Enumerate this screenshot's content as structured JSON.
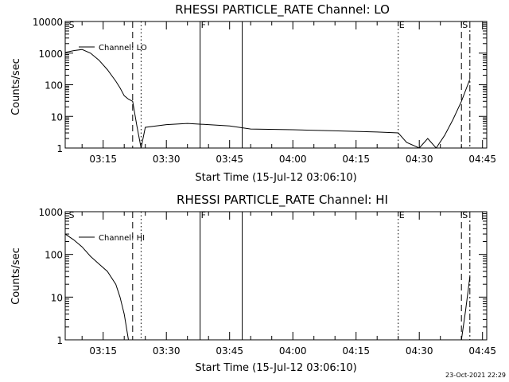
{
  "stamp": "23-Oct-2021 22:29",
  "chart_data": [
    {
      "type": "line",
      "title": "RHESSI PARTICLE_RATE Channel: LO",
      "xlabel": "Start Time (15-Jul-12 03:06:10)",
      "ylabel": "Counts/sec",
      "ylog": true,
      "ylim": [
        1,
        10000
      ],
      "yticks": [
        {
          "v": 1,
          "label": "1"
        },
        {
          "v": 10,
          "label": "10"
        },
        {
          "v": 100,
          "label": "100"
        },
        {
          "v": 1000,
          "label": "1000"
        },
        {
          "v": 10000,
          "label": "10000"
        }
      ],
      "xlim": [
        "03:06",
        "04:46"
      ],
      "xticks": [
        "03:15",
        "03:30",
        "03:45",
        "04:00",
        "04:15",
        "04:30",
        "04:45"
      ],
      "legend": {
        "label": "Channel: LO",
        "position": "top-left"
      },
      "markers": [
        {
          "time": "03:06:40",
          "style": "none",
          "label": "S"
        },
        {
          "time": "03:22",
          "style": "dashed",
          "label": ""
        },
        {
          "time": "03:24",
          "style": "dotted",
          "label": ""
        },
        {
          "time": "03:38",
          "style": "solid",
          "label": "F"
        },
        {
          "time": "03:48",
          "style": "solid",
          "label": ""
        },
        {
          "time": "04:25",
          "style": "dotted",
          "label": "E"
        },
        {
          "time": "04:40",
          "style": "dashed",
          "label": "S"
        },
        {
          "time": "04:42",
          "style": "dashdot",
          "label": ""
        }
      ],
      "series": [
        {
          "name": "Channel: LO",
          "color": "#000000",
          "x": [
            "03:06",
            "03:08",
            "03:10",
            "03:12",
            "03:14",
            "03:16",
            "03:18",
            "03:19",
            "03:20",
            "03:21",
            "03:22",
            "03:23",
            "03:24",
            "03:25",
            "03:30",
            "03:35",
            "03:40",
            "03:45",
            "03:50",
            "04:00",
            "04:10",
            "04:20",
            "04:25",
            "04:27",
            "04:30",
            "04:32",
            "04:34",
            "04:36",
            "04:38",
            "04:40",
            "04:42"
          ],
          "y": [
            1050,
            1200,
            1300,
            1000,
            600,
            300,
            130,
            80,
            45,
            35,
            30,
            5,
            1,
            4.5,
            5.5,
            6,
            5.5,
            5,
            4,
            3.8,
            3.5,
            3.2,
            3,
            1.5,
            1,
            2,
            1,
            2.5,
            8,
            30,
            150
          ]
        }
      ]
    },
    {
      "type": "line",
      "title": "RHESSI PARTICLE_RATE Channel: HI",
      "xlabel": "Start Time (15-Jul-12 03:06:10)",
      "ylabel": "Counts/sec",
      "ylog": true,
      "ylim": [
        1,
        1000
      ],
      "yticks": [
        {
          "v": 1,
          "label": "1"
        },
        {
          "v": 10,
          "label": "10"
        },
        {
          "v": 100,
          "label": "100"
        },
        {
          "v": 1000,
          "label": "1000"
        }
      ],
      "xlim": [
        "03:06",
        "04:46"
      ],
      "xticks": [
        "03:15",
        "03:30",
        "03:45",
        "04:00",
        "04:15",
        "04:30",
        "04:45"
      ],
      "legend": {
        "label": "Channel: HI",
        "position": "top-left"
      },
      "markers": [
        {
          "time": "03:06:40",
          "style": "none",
          "label": "S"
        },
        {
          "time": "03:22",
          "style": "dashed",
          "label": ""
        },
        {
          "time": "03:24",
          "style": "dotted",
          "label": ""
        },
        {
          "time": "03:38",
          "style": "solid",
          "label": "F"
        },
        {
          "time": "03:48",
          "style": "solid",
          "label": ""
        },
        {
          "time": "04:25",
          "style": "dotted",
          "label": "E"
        },
        {
          "time": "04:40",
          "style": "dashed",
          "label": "S"
        },
        {
          "time": "04:42",
          "style": "dashdot",
          "label": ""
        }
      ],
      "series": [
        {
          "name": "Channel: HI",
          "color": "#000000",
          "x": [
            "03:06",
            "03:08",
            "03:10",
            "03:12",
            "03:14",
            "03:16",
            "03:18",
            "03:19",
            "03:20",
            "03:21",
            "04:40",
            "04:41",
            "04:42"
          ],
          "y": [
            300,
            220,
            150,
            90,
            60,
            40,
            20,
            10,
            4,
            1,
            1,
            5,
            30
          ]
        }
      ]
    }
  ]
}
